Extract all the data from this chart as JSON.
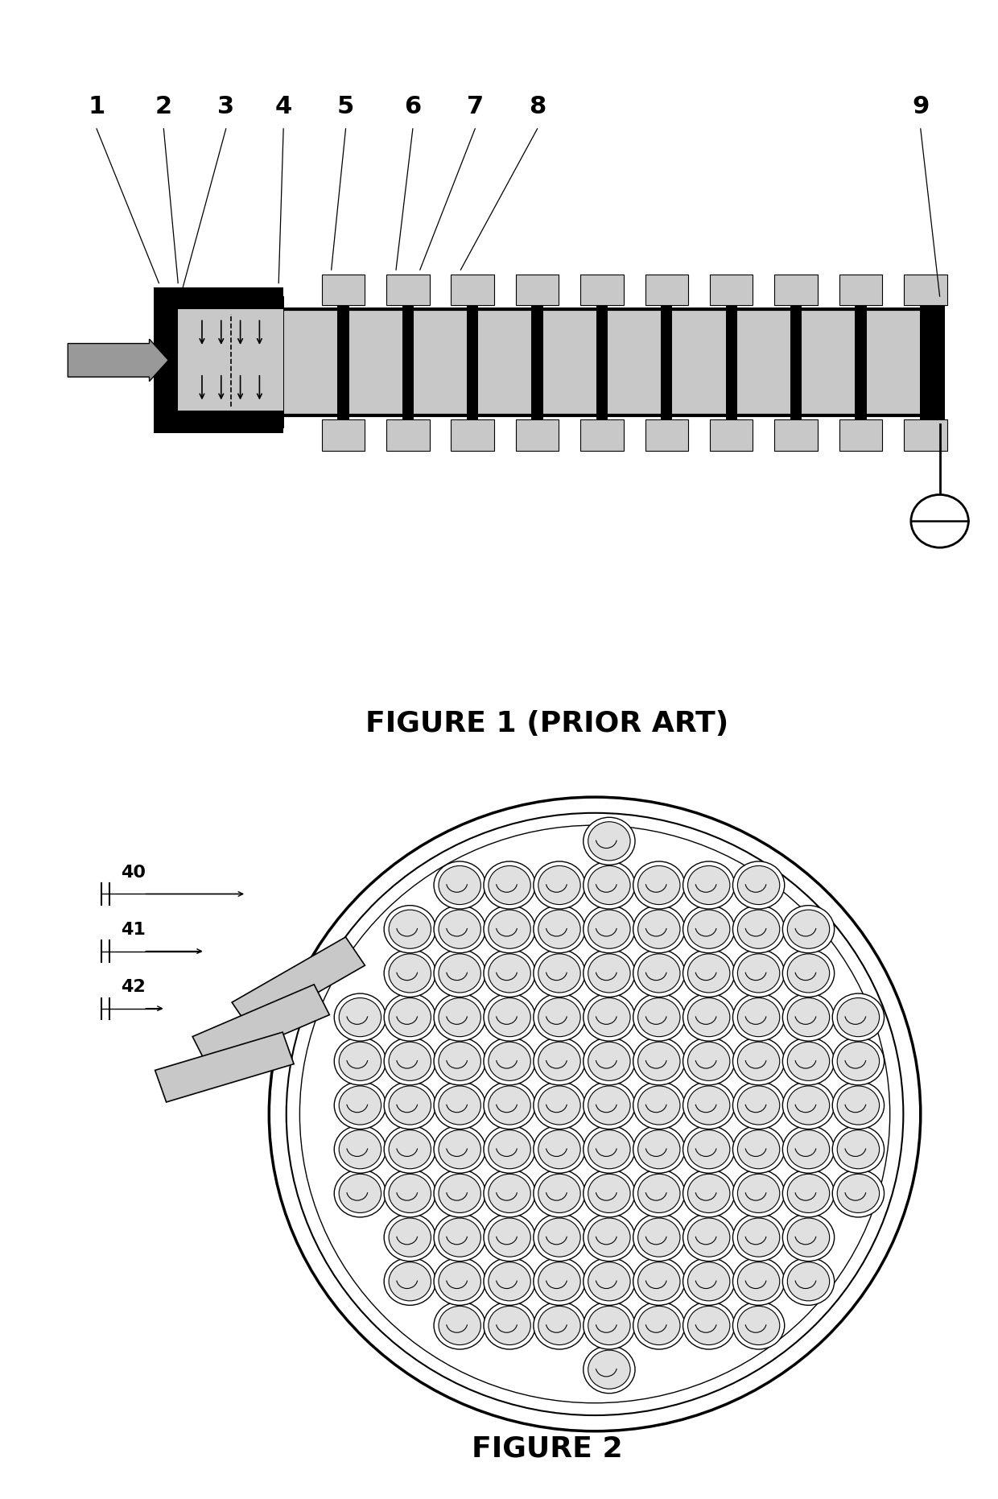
{
  "fig1_title": "FIGURE 1 (PRIOR ART)",
  "fig2_title": "FIGURE 2",
  "bg_color": "#ffffff",
  "gray_light": "#c8c8c8",
  "gray_medium": "#999999",
  "black": "#000000",
  "title_fontsize": 26,
  "label_fontsize": 22
}
